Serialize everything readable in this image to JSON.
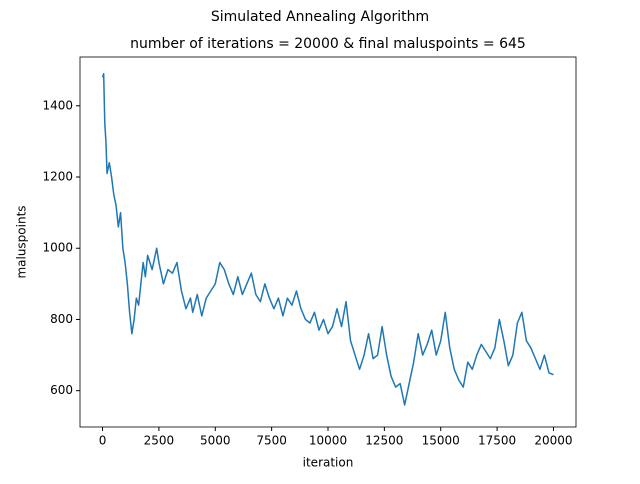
{
  "chart_data": {
    "type": "line",
    "title": "Simulated Annealing Algorithm",
    "subtitle": "number of iterations = 20000 & final maluspoints = 645",
    "x_label": "iteration",
    "y_label": "maluspoints",
    "x": [
      0,
      50,
      100,
      150,
      200,
      300,
      400,
      500,
      600,
      700,
      800,
      900,
      1000,
      1100,
      1200,
      1300,
      1400,
      1500,
      1600,
      1700,
      1800,
      1900,
      2000,
      2200,
      2400,
      2500,
      2700,
      2900,
      3100,
      3300,
      3500,
      3700,
      3900,
      4000,
      4200,
      4400,
      4600,
      4800,
      5000,
      5200,
      5400,
      5600,
      5800,
      6000,
      6200,
      6400,
      6600,
      6800,
      7000,
      7200,
      7400,
      7600,
      7800,
      8000,
      8200,
      8400,
      8600,
      8800,
      9000,
      9200,
      9400,
      9600,
      9800,
      10000,
      10200,
      10400,
      10600,
      10800,
      11000,
      11200,
      11400,
      11600,
      11800,
      12000,
      12200,
      12400,
      12600,
      12800,
      13000,
      13200,
      13400,
      13600,
      13800,
      14000,
      14200,
      14400,
      14600,
      14800,
      15000,
      15200,
      15400,
      15600,
      15800,
      16000,
      16200,
      16400,
      16600,
      16800,
      17000,
      17200,
      17400,
      17600,
      17800,
      18000,
      18200,
      18400,
      18600,
      18800,
      19000,
      19200,
      19400,
      19600,
      19800,
      20000
    ],
    "series": [
      {
        "name": "maluspoints",
        "color": "#1f77b4",
        "values": [
          1480,
          1490,
          1350,
          1300,
          1210,
          1240,
          1200,
          1150,
          1120,
          1060,
          1100,
          1000,
          960,
          900,
          820,
          760,
          800,
          860,
          840,
          900,
          960,
          920,
          980,
          940,
          1000,
          960,
          900,
          940,
          930,
          960,
          880,
          830,
          860,
          820,
          870,
          810,
          860,
          880,
          900,
          960,
          940,
          900,
          870,
          920,
          870,
          900,
          930,
          870,
          850,
          900,
          860,
          830,
          860,
          810,
          860,
          840,
          880,
          830,
          800,
          790,
          820,
          770,
          800,
          760,
          780,
          830,
          780,
          850,
          740,
          700,
          660,
          700,
          760,
          690,
          700,
          780,
          700,
          640,
          610,
          620,
          560,
          620,
          680,
          760,
          700,
          730,
          770,
          700,
          740,
          820,
          720,
          660,
          630,
          610,
          680,
          660,
          700,
          730,
          710,
          690,
          720,
          800,
          740,
          670,
          700,
          790,
          820,
          740,
          720,
          690,
          660,
          700,
          650,
          645
        ]
      }
    ],
    "xlim": [
      -1000,
      21000
    ],
    "ylim": [
      498,
      1537
    ],
    "xticks": [
      0,
      2500,
      5000,
      7500,
      10000,
      12500,
      15000,
      17500,
      20000
    ],
    "yticks": [
      600,
      800,
      1000,
      1200,
      1400
    ]
  }
}
